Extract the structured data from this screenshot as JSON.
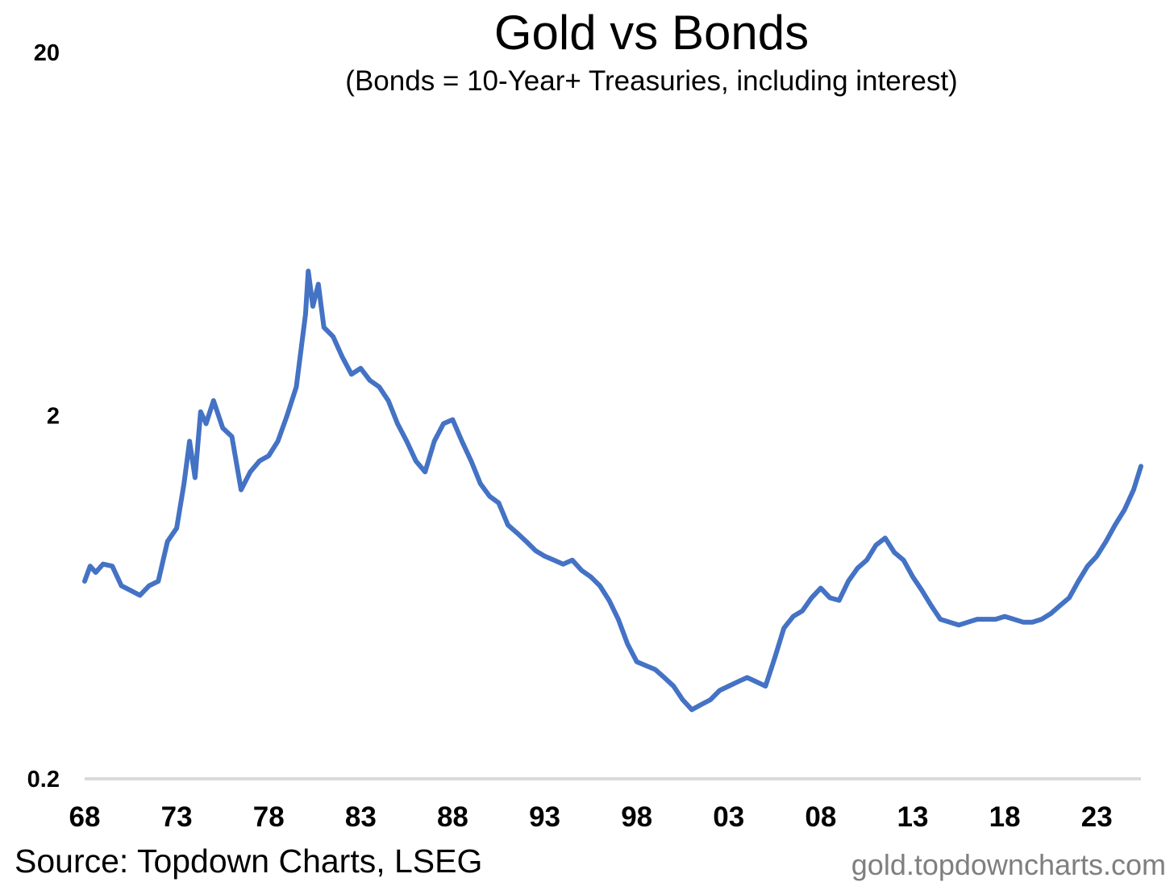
{
  "chart_data": {
    "type": "line",
    "title": "Gold vs Bonds",
    "subtitle": "(Bonds = 10-Year+ Treasuries, including interest)",
    "xlabel": "",
    "ylabel": "",
    "y_scale": "log",
    "ylim": [
      0.2,
      20
    ],
    "y_ticks": [
      "20",
      "2",
      "0.2"
    ],
    "y_tick_values": [
      20,
      2,
      0.2
    ],
    "xlim": [
      1968.0,
      2025.4
    ],
    "x_ticks": [
      "68",
      "73",
      "78",
      "83",
      "88",
      "93",
      "98",
      "03",
      "08",
      "13",
      "18",
      "23"
    ],
    "x_tick_values": [
      1968,
      1973,
      1978,
      1983,
      1988,
      1993,
      1998,
      2003,
      2008,
      2013,
      2018,
      2023
    ],
    "grid": false,
    "legend": "none",
    "line_color": "#4472C4",
    "series": [
      {
        "x": [
          1968.0,
          1968.3,
          1968.6,
          1969.0,
          1969.5,
          1970.0,
          1970.5,
          1971.0,
          1971.5,
          1972.0,
          1972.5,
          1973.0,
          1973.4,
          1973.7,
          1974.0,
          1974.3,
          1974.6,
          1975.0,
          1975.5,
          1976.0,
          1976.5,
          1977.0,
          1977.5,
          1978.0,
          1978.5,
          1979.0,
          1979.5,
          1980.0,
          1980.15,
          1980.4,
          1980.7,
          1981.0,
          1981.5,
          1982.0,
          1982.5,
          1983.0,
          1983.5,
          1984.0,
          1984.5,
          1985.0,
          1985.5,
          1986.0,
          1986.5,
          1987.0,
          1987.5,
          1988.0,
          1988.5,
          1989.0,
          1989.5,
          1990.0,
          1990.5,
          1991.0,
          1991.5,
          1992.0,
          1992.5,
          1993.0,
          1993.5,
          1994.0,
          1994.5,
          1995.0,
          1995.5,
          1996.0,
          1996.5,
          1997.0,
          1997.5,
          1998.0,
          1998.5,
          1999.0,
          1999.5,
          2000.0,
          2000.5,
          2001.0,
          2001.5,
          2002.0,
          2002.5,
          2003.0,
          2003.5,
          2004.0,
          2004.5,
          2005.0,
          2005.5,
          2006.0,
          2006.5,
          2007.0,
          2007.5,
          2008.0,
          2008.5,
          2009.0,
          2009.5,
          2010.0,
          2010.5,
          2011.0,
          2011.5,
          2012.0,
          2012.5,
          2013.0,
          2013.5,
          2014.0,
          2014.5,
          2015.0,
          2015.5,
          2016.0,
          2016.5,
          2017.0,
          2017.5,
          2018.0,
          2018.5,
          2019.0,
          2019.5,
          2020.0,
          2020.5,
          2021.0,
          2021.5,
          2022.0,
          2022.5,
          2023.0,
          2023.5,
          2024.0,
          2024.5,
          2025.0,
          2025.4
        ],
        "y": [
          0.7,
          0.77,
          0.74,
          0.78,
          0.77,
          0.68,
          0.66,
          0.64,
          0.68,
          0.7,
          0.9,
          0.98,
          1.3,
          1.7,
          1.35,
          2.05,
          1.9,
          2.2,
          1.85,
          1.75,
          1.25,
          1.4,
          1.5,
          1.55,
          1.7,
          2.0,
          2.4,
          3.8,
          5.0,
          4.0,
          4.6,
          3.5,
          3.3,
          2.9,
          2.6,
          2.7,
          2.5,
          2.4,
          2.2,
          1.9,
          1.7,
          1.5,
          1.4,
          1.7,
          1.9,
          1.95,
          1.7,
          1.5,
          1.3,
          1.2,
          1.15,
          1.0,
          0.95,
          0.9,
          0.85,
          0.82,
          0.8,
          0.78,
          0.8,
          0.75,
          0.72,
          0.68,
          0.62,
          0.55,
          0.47,
          0.42,
          0.41,
          0.4,
          0.38,
          0.36,
          0.33,
          0.31,
          0.32,
          0.33,
          0.35,
          0.36,
          0.37,
          0.38,
          0.37,
          0.36,
          0.43,
          0.52,
          0.56,
          0.58,
          0.63,
          0.67,
          0.63,
          0.62,
          0.7,
          0.76,
          0.8,
          0.88,
          0.92,
          0.84,
          0.8,
          0.72,
          0.66,
          0.6,
          0.55,
          0.54,
          0.53,
          0.54,
          0.55,
          0.55,
          0.55,
          0.56,
          0.55,
          0.54,
          0.54,
          0.55,
          0.57,
          0.6,
          0.63,
          0.7,
          0.77,
          0.82,
          0.9,
          1.0,
          1.1,
          1.25,
          1.45
        ]
      }
    ]
  },
  "footer": {
    "source": "Source: Topdown Charts, LSEG",
    "site": "gold.topdowncharts.com"
  }
}
